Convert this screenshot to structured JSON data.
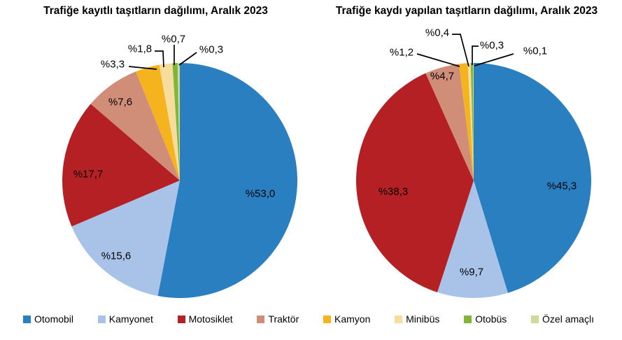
{
  "page": {
    "background": "#ffffff",
    "text_color": "#000000"
  },
  "legend": {
    "position": "bottom",
    "items": [
      {
        "label": "Otomobil",
        "color": "#2a7fc1"
      },
      {
        "label": "Kamyonet",
        "color": "#a9c3e8"
      },
      {
        "label": "Motosiklet",
        "color": "#b52025"
      },
      {
        "label": "Traktör",
        "color": "#d08d78"
      },
      {
        "label": "Kamyon",
        "color": "#f5b31d"
      },
      {
        "label": "Minibüs",
        "color": "#f7dd9d"
      },
      {
        "label": "Otobüs",
        "color": "#80b636"
      },
      {
        "label": "Özel amaçlı",
        "color": "#cfd99c"
      }
    ]
  },
  "chart_data": [
    {
      "type": "pie",
      "title": "Trafiğe kayıtlı taşıtların dağılımı, Aralık 2023",
      "categories": [
        "Otomobil",
        "Kamyonet",
        "Motosiklet",
        "Traktör",
        "Kamyon",
        "Minibüs",
        "Otobüs",
        "Özel amaçlı"
      ],
      "values": [
        53.0,
        15.6,
        17.7,
        7.6,
        3.3,
        1.8,
        0.7,
        0.3
      ],
      "display_values": [
        "%53,0",
        "%15,6",
        "%17,7",
        "%7,6",
        "%3,3",
        "%1,8",
        "%0,7",
        "%0,3"
      ],
      "colors": [
        "#2a7fc1",
        "#a9c3e8",
        "#b52025",
        "#d08d78",
        "#f5b31d",
        "#f7dd9d",
        "#80b636",
        "#cfd99c"
      ],
      "start_angle_deg": 0,
      "direction": "clockwise",
      "legend_position": "bottom",
      "grid": false
    },
    {
      "type": "pie",
      "title": "Trafiğe kaydı yapılan taşıtların dağılımı, Aralık 2023",
      "categories": [
        "Otomobil",
        "Kamyonet",
        "Motosiklet",
        "Traktör",
        "Kamyon",
        "Minibüs",
        "Otobüs",
        "Özel amaçlı"
      ],
      "values": [
        45.3,
        9.7,
        38.3,
        4.7,
        1.2,
        0.4,
        0.3,
        0.1
      ],
      "display_values": [
        "%45,3",
        "%9,7",
        "%38,3",
        "%4,7",
        "%1,2",
        "%0,4",
        "%0,3",
        "%0,1"
      ],
      "colors": [
        "#2a7fc1",
        "#a9c3e8",
        "#b52025",
        "#d08d78",
        "#f5b31d",
        "#f7dd9d",
        "#80b636",
        "#cfd99c"
      ],
      "start_angle_deg": 0,
      "direction": "clockwise",
      "legend_position": "bottom",
      "grid": false
    }
  ]
}
